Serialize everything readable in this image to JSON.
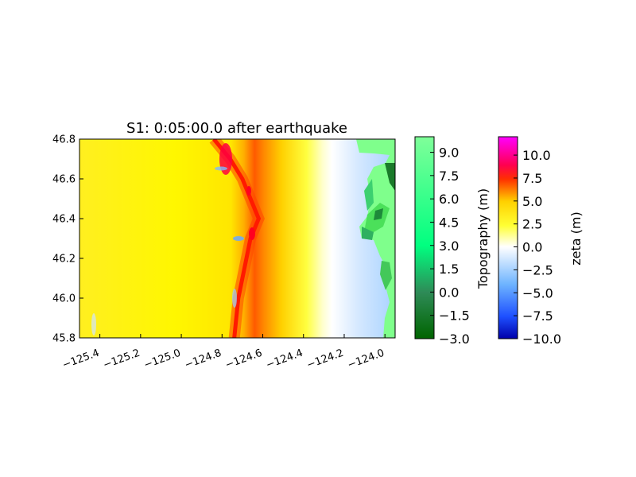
{
  "chart_data": {
    "type": "heatmap",
    "title": "S1: 0:05:00.0 after earthquake",
    "xlabel": "",
    "ylabel": "",
    "xlim": [
      -125.5,
      -123.95
    ],
    "ylim": [
      45.8,
      46.8
    ],
    "xticks": [
      -125.4,
      -125.2,
      -125.0,
      -124.8,
      -124.6,
      -124.4,
      -124.2,
      -124.0
    ],
    "xtick_labels": [
      "−125.4",
      "−125.2",
      "−125.0",
      "−124.8",
      "−124.6",
      "−124.4",
      "−124.2",
      "−124.0"
    ],
    "yticks": [
      45.8,
      46.0,
      46.2,
      46.4,
      46.6,
      46.8
    ],
    "ytick_labels": [
      "45.8",
      "46.0",
      "46.2",
      "46.4",
      "46.6",
      "46.8"
    ],
    "wave_front": {
      "description_points_lat": [
        46.8,
        46.7,
        46.6,
        46.5,
        46.4,
        46.3,
        46.2,
        46.1,
        46.0,
        45.9,
        45.8
      ],
      "crest_lon": [
        -124.84,
        -124.76,
        -124.7,
        -124.66,
        -124.62,
        -124.66,
        -124.68,
        -124.7,
        -124.72,
        -124.73,
        -124.74
      ]
    },
    "colorbars": [
      {
        "name": "topography",
        "label": "Topography (m)",
        "range": [
          -3.0,
          10.0
        ],
        "ticks": [
          -3.0,
          -1.5,
          0.0,
          1.5,
          3.0,
          4.5,
          6.0,
          7.5,
          9.0
        ],
        "tick_labels": [
          "−3.0",
          "−1.5",
          "0.0",
          "1.5",
          "3.0",
          "4.5",
          "6.0",
          "7.5",
          "9.0"
        ],
        "colors": [
          "#006400",
          "#1f8f4a",
          "#00ff99",
          "#7fff99"
        ]
      },
      {
        "name": "zeta",
        "label": "zeta (m)",
        "range": [
          -10.0,
          12.0
        ],
        "ticks": [
          -10.0,
          -7.5,
          -5.0,
          -2.5,
          0.0,
          2.5,
          5.0,
          7.5,
          10.0
        ],
        "tick_labels": [
          "−10.0",
          "−7.5",
          "−5.0",
          "−2.5",
          "0.0",
          "2.5",
          "5.0",
          "7.5",
          "10.0"
        ],
        "colors": [
          "#0000aa",
          "#1e64ff",
          "#96c8ff",
          "#ffffff",
          "#ffff00",
          "#ffa500",
          "#ff2200",
          "#ff0066",
          "#ff00ff"
        ]
      }
    ]
  }
}
